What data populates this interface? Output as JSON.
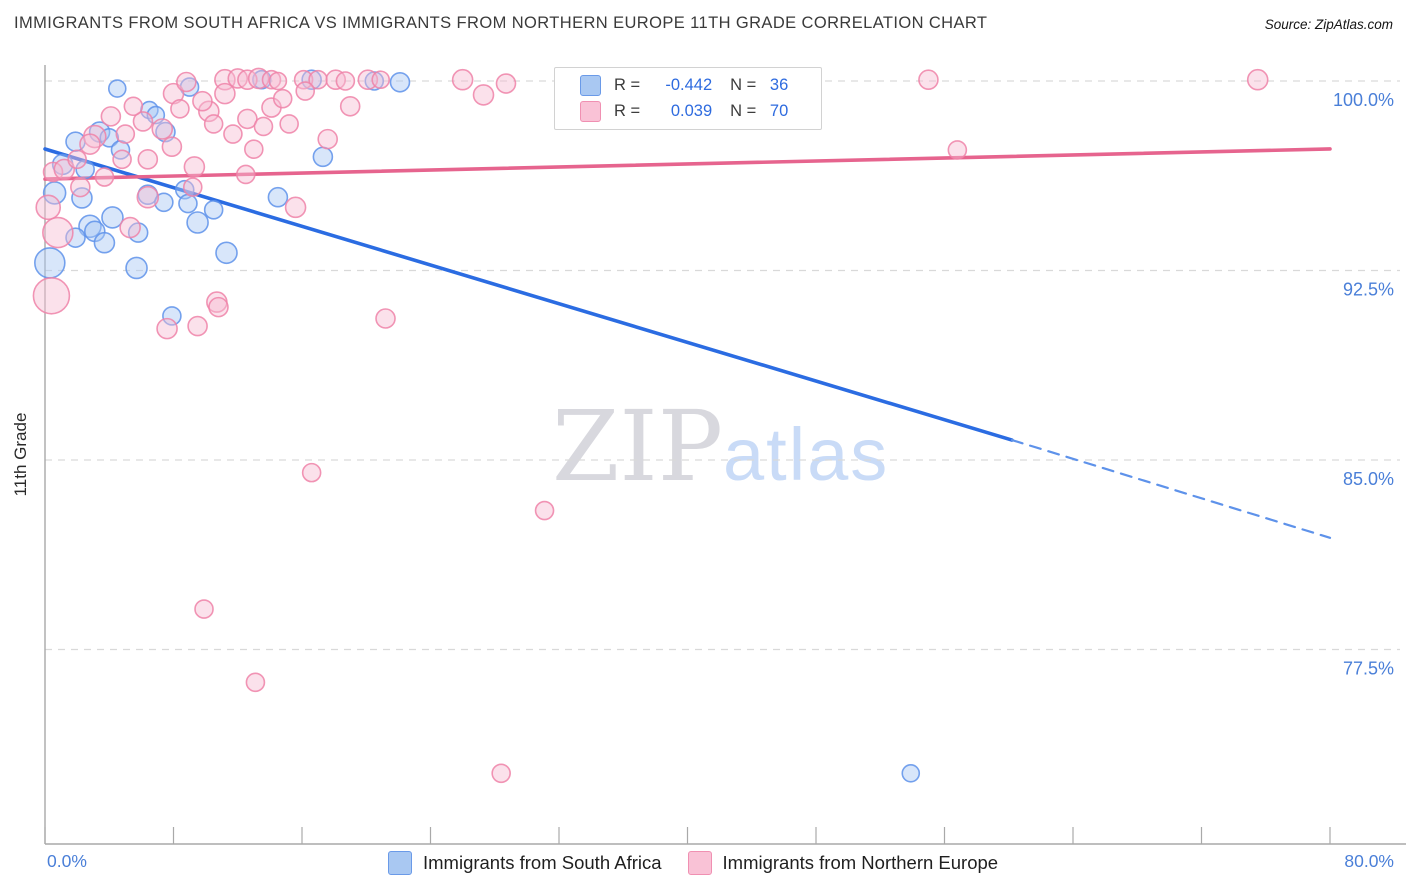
{
  "header": {
    "title": "IMMIGRANTS FROM SOUTH AFRICA VS IMMIGRANTS FROM NORTHERN EUROPE 11TH GRADE CORRELATION CHART",
    "source": "Source: ZipAtlas.com"
  },
  "watermark": {
    "zip": "ZIP",
    "atlas": "atlas"
  },
  "stats_legend": {
    "rows": [
      {
        "series": "south-africa",
        "r_label": "R =",
        "r_value": "-0.442",
        "n_label": "N =",
        "n_value": "36"
      },
      {
        "series": "northern-europe",
        "r_label": "R =",
        "r_value": "0.039",
        "n_label": "N =",
        "n_value": "70"
      }
    ]
  },
  "bottom_legend": {
    "items": [
      {
        "key": "south-africa",
        "label": "Immigrants from South Africa"
      },
      {
        "key": "northern-europe",
        "label": "Immigrants from Northern Europe"
      }
    ]
  },
  "colors": {
    "blue_fill": "#a9c7f5",
    "blue_stroke": "#5e92ea",
    "blue_trend": "#2b6ce2",
    "pink_fill": "#f7bcd2",
    "pink_stroke": "#ef82a8",
    "pink_trend": "#e6648e",
    "grid": "#d9d9d9",
    "axis": "#a9a9a9",
    "tick_label": "#4a7fd8"
  },
  "chart_data": {
    "type": "scatter",
    "title": "Immigrants from South Africa vs Immigrants from Northern Europe 11th Grade correlation",
    "x_axis": {
      "min": 0,
      "max": 80,
      "tick_step": 8,
      "left_label": "0.0%",
      "right_label": "80.0%"
    },
    "y_axis": {
      "label": "11th Grade",
      "ticks": [
        {
          "value": 100.0,
          "label": "100.0%"
        },
        {
          "value": 92.5,
          "label": "92.5%"
        },
        {
          "value": 85.0,
          "label": "85.0%"
        },
        {
          "value": 77.5,
          "label": "77.5%"
        }
      ]
    },
    "series": [
      {
        "name": "Immigrants from South Africa",
        "R": -0.442,
        "N": 36,
        "color_key": "blue",
        "points": [
          [
            0.6,
            95.57,
            11
          ],
          [
            2.3,
            95.37,
            10
          ],
          [
            4.2,
            94.6,
            10.5
          ],
          [
            2.8,
            94.25,
            11
          ],
          [
            3.1,
            94.05,
            10
          ],
          [
            1.9,
            93.8,
            9.5
          ],
          [
            3.7,
            93.6,
            10
          ],
          [
            5.8,
            94.0,
            9.5
          ],
          [
            6.4,
            95.5,
            9.5
          ],
          [
            7.4,
            95.2,
            9
          ],
          [
            8.7,
            95.7,
            9
          ],
          [
            8.9,
            95.15,
            9
          ],
          [
            9.5,
            94.4,
            10.5
          ],
          [
            11.3,
            93.2,
            10.5
          ],
          [
            5.7,
            92.6,
            10.5
          ],
          [
            0.3,
            92.8,
            15
          ],
          [
            7.9,
            90.7,
            9
          ],
          [
            14.5,
            95.4,
            9.5
          ],
          [
            17.3,
            97.0,
            9.5
          ],
          [
            53.9,
            72.6,
            8.5
          ],
          [
            4.5,
            99.7,
            8.5
          ],
          [
            9.0,
            99.76,
            9
          ],
          [
            13.5,
            100.05,
            9
          ],
          [
            16.6,
            100.05,
            9.5
          ],
          [
            20.5,
            100.0,
            9
          ],
          [
            22.1,
            99.95,
            9.5
          ],
          [
            6.5,
            98.85,
            8.5
          ],
          [
            6.9,
            98.65,
            8.5
          ],
          [
            3.4,
            97.98,
            10
          ],
          [
            7.5,
            97.98,
            9.5
          ],
          [
            1.9,
            97.6,
            9.5
          ],
          [
            4.0,
            97.75,
            9
          ],
          [
            1.1,
            96.7,
            10
          ],
          [
            4.7,
            97.27,
            9
          ],
          [
            2.5,
            96.5,
            9
          ],
          [
            10.5,
            94.9,
            9
          ]
        ]
      },
      {
        "name": "Immigrants from Northern Europe",
        "R": 0.039,
        "N": 70,
        "color_key": "pink",
        "points": [
          [
            11.2,
            100.05,
            10
          ],
          [
            12.0,
            100.1,
            9.5
          ],
          [
            12.6,
            100.05,
            9.5
          ],
          [
            13.3,
            100.1,
            10
          ],
          [
            14.1,
            100.05,
            9
          ],
          [
            14.5,
            100.0,
            8.5
          ],
          [
            16.1,
            100.05,
            9
          ],
          [
            17.0,
            100.05,
            9
          ],
          [
            18.1,
            100.05,
            9.5
          ],
          [
            18.7,
            100.0,
            9
          ],
          [
            20.1,
            100.05,
            9.5
          ],
          [
            20.9,
            100.05,
            8.5
          ],
          [
            26.0,
            100.05,
            10
          ],
          [
            28.7,
            99.9,
            9.5
          ],
          [
            33.0,
            100.05,
            9.5
          ],
          [
            55.0,
            100.05,
            9.5
          ],
          [
            75.5,
            100.05,
            10
          ],
          [
            8.0,
            99.5,
            10
          ],
          [
            8.8,
            99.96,
            9.5
          ],
          [
            11.2,
            99.5,
            10
          ],
          [
            10.2,
            98.8,
            10
          ],
          [
            12.6,
            98.5,
            9.5
          ],
          [
            14.1,
            98.95,
            9.5
          ],
          [
            17.6,
            97.7,
            9.5
          ],
          [
            27.3,
            99.45,
            10
          ],
          [
            6.1,
            98.4,
            9.5
          ],
          [
            7.3,
            98.1,
            10
          ],
          [
            3.1,
            97.8,
            11
          ],
          [
            2.8,
            97.5,
            10
          ],
          [
            0.5,
            96.4,
            9.5
          ],
          [
            1.2,
            96.5,
            10
          ],
          [
            4.8,
            96.9,
            9
          ],
          [
            6.4,
            96.9,
            9.5
          ],
          [
            9.3,
            96.6,
            10
          ],
          [
            0.8,
            94.0,
            15
          ],
          [
            0.4,
            91.5,
            18
          ],
          [
            5.3,
            94.2,
            10
          ],
          [
            6.4,
            95.4,
            10.5
          ],
          [
            15.6,
            95.0,
            10
          ],
          [
            9.2,
            95.8,
            9
          ],
          [
            10.7,
            91.25,
            10
          ],
          [
            10.8,
            91.05,
            9.5
          ],
          [
            7.6,
            90.2,
            10
          ],
          [
            9.5,
            90.3,
            9.5
          ],
          [
            21.2,
            90.6,
            9.5
          ],
          [
            16.6,
            84.5,
            9
          ],
          [
            31.1,
            83.0,
            9
          ],
          [
            9.9,
            79.1,
            9
          ],
          [
            13.1,
            76.2,
            9
          ],
          [
            28.4,
            72.6,
            9
          ],
          [
            56.8,
            97.27,
            9
          ],
          [
            5.5,
            99.0,
            9
          ],
          [
            9.8,
            99.2,
            9.5
          ],
          [
            2.0,
            96.9,
            9
          ],
          [
            0.2,
            95.0,
            12
          ],
          [
            12.5,
            96.3,
            9
          ],
          [
            14.8,
            99.3,
            9
          ],
          [
            19.0,
            99.0,
            9.5
          ],
          [
            10.5,
            98.3,
            9
          ],
          [
            13.6,
            98.2,
            9
          ],
          [
            4.1,
            98.6,
            9.5
          ],
          [
            5.0,
            97.9,
            9
          ],
          [
            7.9,
            97.4,
            9.5
          ],
          [
            11.7,
            97.9,
            9
          ],
          [
            8.4,
            98.9,
            9
          ],
          [
            15.2,
            98.3,
            9
          ],
          [
            13.0,
            97.3,
            9
          ],
          [
            3.7,
            96.2,
            9
          ],
          [
            2.2,
            95.8,
            9.5
          ],
          [
            16.2,
            99.6,
            9
          ]
        ]
      }
    ],
    "trend_lines": [
      {
        "series": "south-africa",
        "style": "solid",
        "from": [
          0,
          97.31
        ],
        "to": [
          60.2,
          85.79
        ]
      },
      {
        "series": "south-africa",
        "style": "dashed",
        "from": [
          60.2,
          85.79
        ],
        "to": [
          80,
          81.92
        ]
      },
      {
        "series": "northern-europe",
        "style": "solid",
        "from": [
          0,
          96.12
        ],
        "to": [
          80,
          97.31
        ]
      }
    ],
    "legend_position": "bottom",
    "grid": true
  }
}
